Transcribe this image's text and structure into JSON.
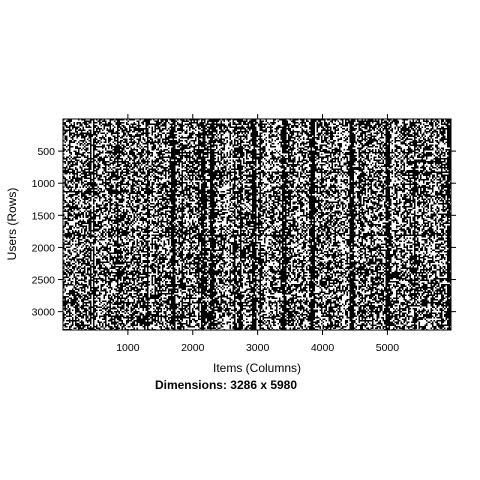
{
  "chart_data": {
    "type": "heatmap",
    "subtype": "binary-sparsity-image",
    "title": "",
    "xlabel": "Items (Columns)",
    "ylabel": "Users (Rows)",
    "xlim": [
      0,
      5980
    ],
    "ylim": [
      0,
      3286
    ],
    "xticks": [
      1000,
      2000,
      3000,
      4000,
      5000
    ],
    "yticks": [
      500,
      1000,
      1500,
      2000,
      2500,
      3000
    ],
    "xtick_labels": [
      "1000",
      "2000",
      "3000",
      "4000",
      "5000"
    ],
    "ytick_labels": [
      "500",
      "1000",
      "1500",
      "2000",
      "2500",
      "3000"
    ],
    "caption": "Dimensions: 3286 x 5980",
    "rows": 3286,
    "columns": 5980,
    "fill_color": "#000000",
    "background_color": "#ffffff",
    "approx_density": 0.55,
    "dense_columns_approx": [
      450,
      1700,
      2150,
      2300,
      2950,
      3400,
      3850,
      4450,
      5000,
      5950
    ]
  }
}
